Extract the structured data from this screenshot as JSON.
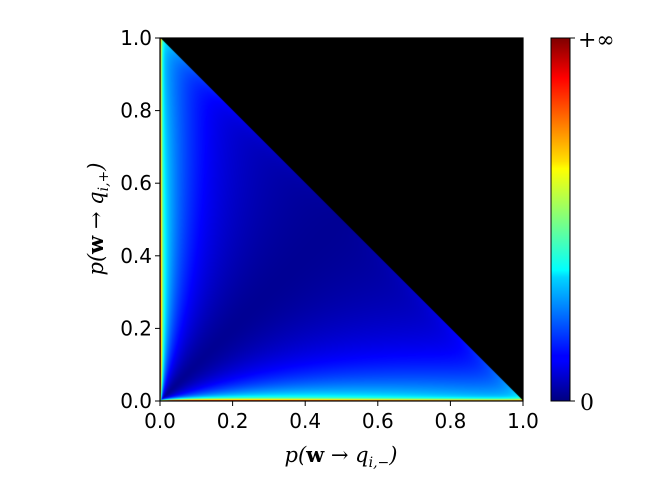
{
  "chart_data": {
    "type": "heatmap",
    "title": "",
    "xlabel": "p(w → q_{i,−})",
    "ylabel": "p(w → q_{i,+})",
    "xlim": [
      0.0,
      1.0
    ],
    "ylim": [
      0.0,
      1.0
    ],
    "x_ticks": [
      "0.0",
      "0.2",
      "0.4",
      "0.6",
      "0.8",
      "1.0"
    ],
    "y_ticks": [
      "0.0",
      "0.2",
      "0.4",
      "0.6",
      "0.8",
      "1.0"
    ],
    "colorbar": {
      "colormap": "jet",
      "min_label": "0",
      "max_label": "+∞"
    },
    "masked_region": "x + y > 1",
    "masked_color": "#000000",
    "grid": false
  },
  "labels": {
    "xlabel_main": "p(",
    "xlabel_bold": "w",
    "xlabel_arrow": " → q",
    "xlabel_sub": "i,−",
    "xlabel_close": ")",
    "ylabel_main": "p(",
    "ylabel_bold": "w",
    "ylabel_arrow": " → q",
    "ylabel_sub": "i,+",
    "ylabel_close": ")"
  }
}
